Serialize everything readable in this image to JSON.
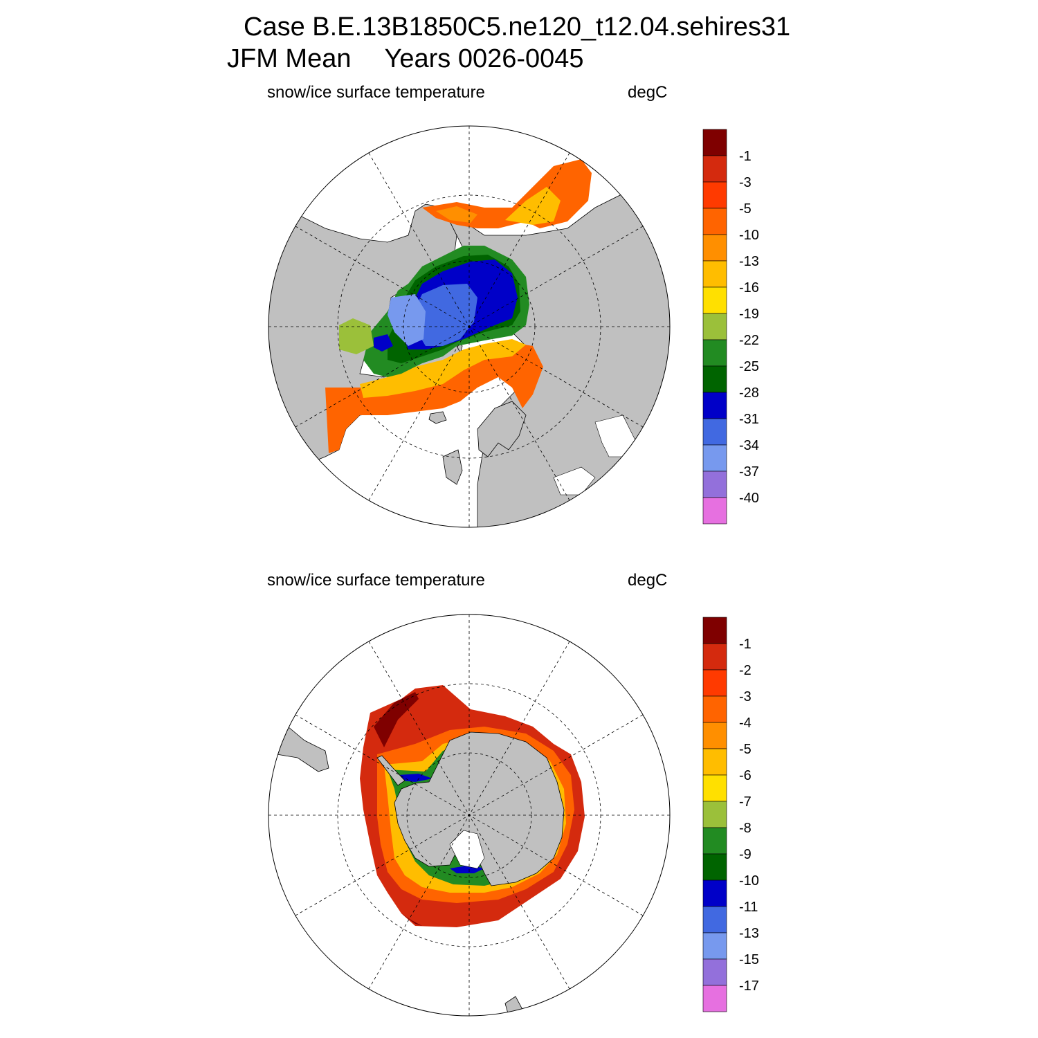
{
  "header": {
    "case_line": "Case B.E.13B1850C5.ne120_t12.04.sehires31",
    "period": "JFM Mean",
    "years": "Years 0026-0045"
  },
  "panels": [
    {
      "id": "north",
      "variable": "snow/ice surface temperature",
      "units": "degC",
      "colorbar": {
        "colors": [
          "#7f0000",
          "#d42a0e",
          "#ff3a00",
          "#ff6400",
          "#ff8f00",
          "#ffbd00",
          "#ffe000",
          "#9bc03a",
          "#228b22",
          "#006400",
          "#0000c8",
          "#4169e1",
          "#7799ee",
          "#9370db",
          "#e670e0"
        ],
        "labels": [
          "-1",
          "-3",
          "-5",
          "-10",
          "-13",
          "-16",
          "-19",
          "-22",
          "-25",
          "-28",
          "-31",
          "-34",
          "-37",
          "-40"
        ]
      }
    },
    {
      "id": "south",
      "variable": "snow/ice surface temperature",
      "units": "degC",
      "colorbar": {
        "colors": [
          "#7f0000",
          "#d42a0e",
          "#ff3a00",
          "#ff6400",
          "#ff8f00",
          "#ffbd00",
          "#ffe000",
          "#9bc03a",
          "#228b22",
          "#006400",
          "#0000c8",
          "#4169e1",
          "#7799ee",
          "#9370db",
          "#e670e0"
        ],
        "labels": [
          "-1",
          "-2",
          "-3",
          "-4",
          "-5",
          "-6",
          "-7",
          "-8",
          "-9",
          "-10",
          "-11",
          "-13",
          "-15",
          "-17"
        ]
      }
    }
  ],
  "colors": {
    "land": "#c0c0c0",
    "ocean": "#ffffff",
    "grid": "#000000"
  }
}
